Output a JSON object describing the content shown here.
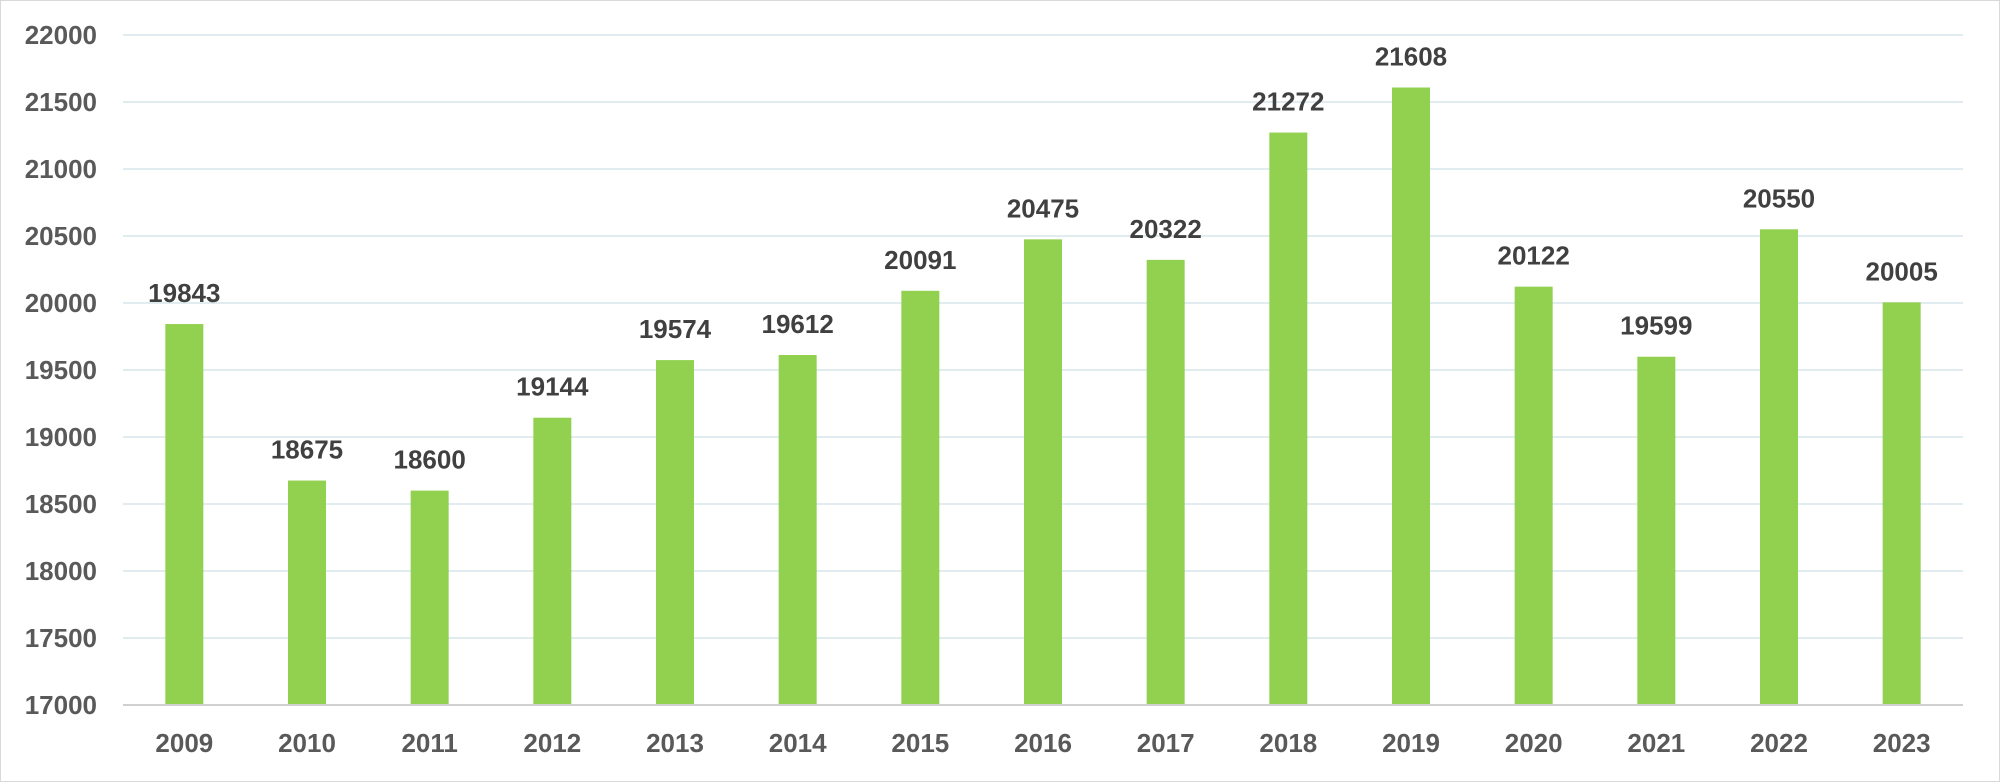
{
  "chart_data": {
    "type": "bar",
    "title": "",
    "xlabel": "",
    "ylabel": "",
    "categories": [
      "2009",
      "2010",
      "2011",
      "2012",
      "2013",
      "2014",
      "2015",
      "2016",
      "2017",
      "2018",
      "2019",
      "2020",
      "2021",
      "2022",
      "2023"
    ],
    "values": [
      19843,
      18675,
      18600,
      19144,
      19574,
      19612,
      20091,
      20475,
      20322,
      21272,
      21608,
      20122,
      19599,
      20550,
      20005
    ],
    "ylim": [
      17000,
      22000
    ],
    "yticks": [
      17000,
      17500,
      18000,
      18500,
      19000,
      19500,
      20000,
      20500,
      21000,
      21500,
      22000
    ],
    "grid": true,
    "legend": "none",
    "data_labels": true,
    "colors": {
      "bar": "#92d050",
      "gridline": "#d6e6ea",
      "axis_line": "#d0d0d0",
      "tick_text": "#595959",
      "data_label_text": "#404040"
    }
  }
}
